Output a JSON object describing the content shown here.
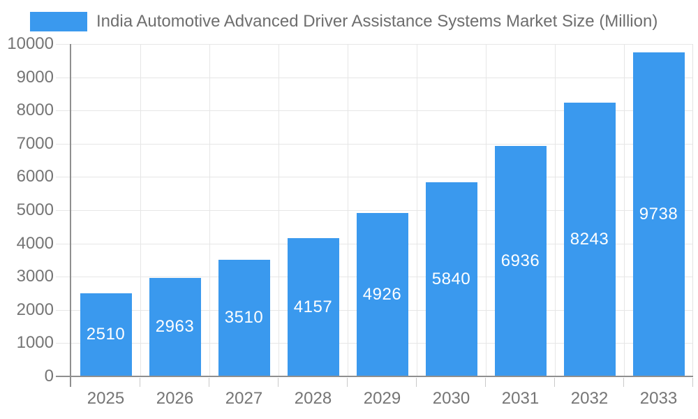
{
  "chart_data": {
    "type": "bar",
    "title": "India Automotive Advanced Driver Assistance Systems Market Size (Million)",
    "categories": [
      "2025",
      "2026",
      "2027",
      "2028",
      "2029",
      "2030",
      "2031",
      "2032",
      "2033"
    ],
    "values": [
      2510,
      2963,
      3510,
      4157,
      4926,
      5840,
      6936,
      8243,
      9738
    ],
    "series": [
      {
        "name": "India Automotive Advanced Driver Assistance Systems Market Size (Million)",
        "values": [
          2510,
          2963,
          3510,
          4157,
          4926,
          5840,
          6936,
          8243,
          9738
        ]
      }
    ],
    "xlabel": "",
    "ylabel": "",
    "ylim": [
      0,
      10000
    ],
    "ytick_step": 1000,
    "ytick_labels": [
      "0",
      "1000",
      "2000",
      "3000",
      "4000",
      "5000",
      "6000",
      "7000",
      "8000",
      "9000",
      "10000"
    ],
    "grid": "horizontal and vertical light gray",
    "legend_position": "top-left",
    "value_labels": "white, centered inside bars"
  },
  "colors": {
    "bar": "#3a99ee",
    "bar_value_text": "#ffffff",
    "axis_line": "#8f8f8f",
    "gridline": "#e6e6e6",
    "x_tick": "#c9c9c9",
    "axis_label_text": "#757575",
    "title_text": "#6e6e6e",
    "background": "#ffffff"
  }
}
